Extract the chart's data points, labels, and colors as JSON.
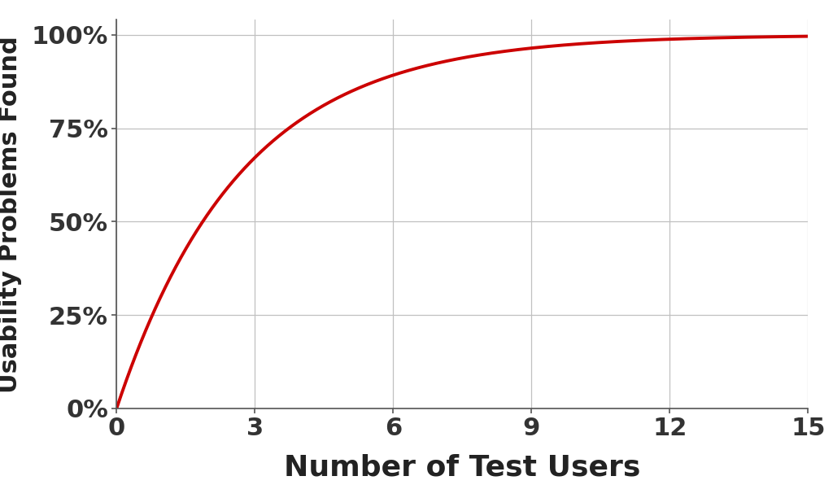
{
  "title": "",
  "xlabel": "Number of Test Users",
  "ylabel": "Usability Problems Found",
  "line_color": "#cc0000",
  "line_width": 2.8,
  "background_color": "#ffffff",
  "grid_color": "#c0c0c0",
  "xlim": [
    0,
    15
  ],
  "ylim": [
    0,
    1.04
  ],
  "xticks": [
    0,
    3,
    6,
    9,
    12,
    15
  ],
  "yticks": [
    0,
    0.25,
    0.5,
    0.75,
    1.0
  ],
  "p": 0.31,
  "n_points": 2000,
  "xlabel_fontsize": 26,
  "ylabel_fontsize": 22,
  "tick_fontsize": 22
}
